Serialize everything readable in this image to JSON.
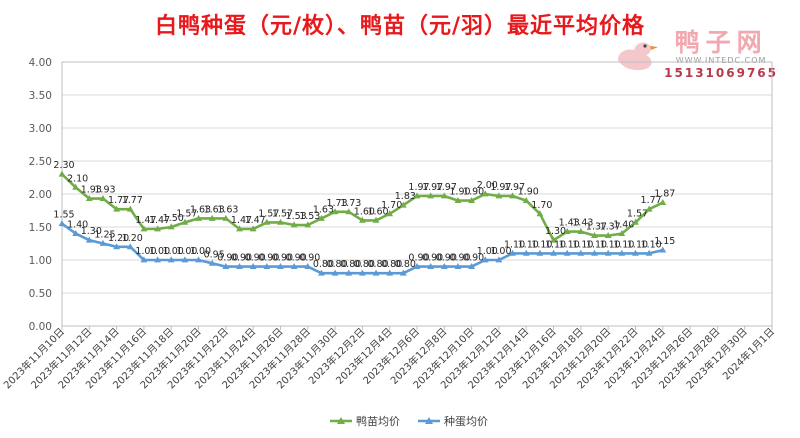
{
  "title": "白鸭种蛋（元/枚）、鸭苗（元/羽）最近平均价格",
  "watermark": {
    "brand": "鸭子网",
    "url": "WWW.INTEDC.COM",
    "phone": "15131069765"
  },
  "colors": {
    "title": "#e8191c",
    "duckling": "#70ad47",
    "egg": "#5b9bd5",
    "grid": "#d9d9d9",
    "axis": "#595959"
  },
  "chart_data": {
    "type": "line",
    "title": "白鸭种蛋（元/枚）、鸭苗（元/羽）最近平均价格",
    "xlabel": "",
    "ylabel": "",
    "ylim": [
      0,
      4
    ],
    "yticks": [
      "0.00",
      "0.50",
      "1.00",
      "1.50",
      "2.00",
      "2.50",
      "3.00",
      "3.50",
      "4.00"
    ],
    "grid": true,
    "legend_position": "bottom",
    "x_tick_labels": [
      "2023年11月10日",
      "2023年11月12日",
      "2023年11月14日",
      "2023年11月16日",
      "2023年11月18日",
      "2023年11月20日",
      "2023年11月22日",
      "2023年11月24日",
      "2023年11月26日",
      "2023年11月28日",
      "2023年11月30日",
      "2023年12月2日",
      "2023年12月4日",
      "2023年12月6日",
      "2023年12月8日",
      "2023年12月10日",
      "2023年12月12日",
      "2023年12月14日",
      "2023年12月16日",
      "2023年12月18日",
      "2023年12月20日",
      "2023年12月22日",
      "2023年12月24日",
      "2023年12月26日",
      "2023年12月28日",
      "2023年12月30日",
      "2024年1月1日"
    ],
    "x_start": "2023年11月10日",
    "x_end": "2024年1月1日",
    "series": [
      {
        "name": "鸭苗均价",
        "x": [
          "2023-11-10",
          "2023-11-11",
          "2023-11-12",
          "2023-11-13",
          "2023-11-14",
          "2023-11-15",
          "2023-11-16",
          "2023-11-17",
          "2023-11-18",
          "2023-11-19",
          "2023-11-20",
          "2023-11-21",
          "2023-11-22",
          "2023-11-23",
          "2023-11-24",
          "2023-11-25",
          "2023-11-26",
          "2023-11-27",
          "2023-11-28",
          "2023-11-29",
          "2023-11-30",
          "2023-12-01",
          "2023-12-02",
          "2023-12-03",
          "2023-12-04",
          "2023-12-05",
          "2023-12-06",
          "2023-12-07",
          "2023-12-08",
          "2023-12-09",
          "2023-12-10",
          "2023-12-11",
          "2023-12-12",
          "2023-12-13",
          "2023-12-14",
          "2023-12-15",
          "2023-12-16",
          "2023-12-17",
          "2023-12-18",
          "2023-12-19",
          "2023-12-20",
          "2023-12-21",
          "2023-12-22",
          "2023-12-23",
          "2023-12-24"
        ],
        "values": [
          2.3,
          2.1,
          1.93,
          1.93,
          1.77,
          1.77,
          1.47,
          1.47,
          1.5,
          1.57,
          1.63,
          1.63,
          1.63,
          1.47,
          1.47,
          1.57,
          1.57,
          1.53,
          1.53,
          1.63,
          1.73,
          1.73,
          1.6,
          1.6,
          1.7,
          1.83,
          1.97,
          1.97,
          1.97,
          1.9,
          1.9,
          2.0,
          1.97,
          1.97,
          1.9,
          1.7,
          1.3,
          1.43,
          1.43,
          1.37,
          1.37,
          1.4,
          1.57,
          1.77,
          1.87
        ],
        "labels": [
          "2.30",
          "2.10",
          "1.93",
          "1.93",
          "1.77",
          "1.77",
          "1.47",
          "1.47",
          "1.50",
          "1.57",
          "1.63",
          "1.63",
          "1.63",
          "1.47",
          "1.47",
          "1.57",
          "1.57",
          "1.53",
          "1.53",
          "1.63",
          "1.73",
          "1.73",
          "1.60",
          "1.60",
          "1.70",
          "1.83",
          "1.97",
          "1.97",
          "1.97",
          "1.90",
          "1.90",
          "2.00",
          "1.97",
          "1.97",
          "1.90",
          "1.70",
          "1.30",
          "1.43",
          "1.43",
          "1.37",
          "1.37",
          "1.40",
          "1.57",
          "1.77",
          "1.87"
        ]
      },
      {
        "name": "种蛋均价",
        "x": [
          "2023-11-10",
          "2023-11-11",
          "2023-11-12",
          "2023-11-13",
          "2023-11-14",
          "2023-11-15",
          "2023-11-16",
          "2023-11-17",
          "2023-11-18",
          "2023-11-19",
          "2023-11-20",
          "2023-11-21",
          "2023-11-22",
          "2023-11-23",
          "2023-11-24",
          "2023-11-25",
          "2023-11-26",
          "2023-11-27",
          "2023-11-28",
          "2023-11-29",
          "2023-11-30",
          "2023-12-01",
          "2023-12-02",
          "2023-12-03",
          "2023-12-04",
          "2023-12-05",
          "2023-12-06",
          "2023-12-07",
          "2023-12-08",
          "2023-12-09",
          "2023-12-10",
          "2023-12-11",
          "2023-12-12",
          "2023-12-13",
          "2023-12-14",
          "2023-12-15",
          "2023-12-16",
          "2023-12-17",
          "2023-12-18",
          "2023-12-19",
          "2023-12-20",
          "2023-12-21",
          "2023-12-22",
          "2023-12-23",
          "2023-12-24"
        ],
        "values": [
          1.55,
          1.4,
          1.3,
          1.25,
          1.2,
          1.2,
          1.0,
          1.0,
          1.0,
          1.0,
          1.0,
          0.95,
          0.9,
          0.9,
          0.9,
          0.9,
          0.9,
          0.9,
          0.9,
          0.8,
          0.8,
          0.8,
          0.8,
          0.8,
          0.8,
          0.8,
          0.9,
          0.9,
          0.9,
          0.9,
          0.9,
          1.0,
          1.0,
          1.1,
          1.1,
          1.1,
          1.1,
          1.1,
          1.1,
          1.1,
          1.1,
          1.1,
          1.1,
          1.1,
          1.15
        ],
        "labels": [
          "1.55",
          "1.40",
          "1.30",
          "1.25",
          "1.20",
          "1.20",
          "1.00",
          "1.00",
          "1.00",
          "1.00",
          "1.00",
          "0.95",
          "0.90",
          "0.90",
          "0.90",
          "0.90",
          "0.90",
          "0.90",
          "0.90",
          "0.80",
          "0.80",
          "0.80",
          "0.80",
          "0.80",
          "0.80",
          "0.80",
          "0.90",
          "0.90",
          "0.90",
          "0.90",
          "0.90",
          "1.00",
          "1.00",
          "1.10",
          "1.10",
          "1.10",
          "1.10",
          "1.10",
          "1.10",
          "1.10",
          "1.10",
          "1.10",
          "1.10",
          "1.10",
          "1.15"
        ]
      }
    ]
  }
}
